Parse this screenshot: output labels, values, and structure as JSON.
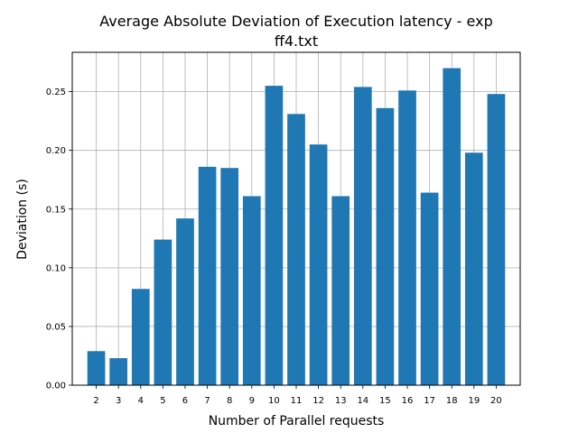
{
  "chart_data": {
    "type": "bar",
    "title_line1": "Average Absolute Deviation of Execution latency - exp",
    "title_line2": "ff4.txt",
    "xlabel": "Number of Parallel requests",
    "ylabel": "Deviation (s)",
    "categories": [
      "2",
      "3",
      "4",
      "5",
      "6",
      "7",
      "8",
      "9",
      "10",
      "11",
      "12",
      "13",
      "14",
      "15",
      "16",
      "17",
      "18",
      "19",
      "20"
    ],
    "values": [
      0.029,
      0.023,
      0.082,
      0.124,
      0.142,
      0.186,
      0.185,
      0.161,
      0.255,
      0.231,
      0.205,
      0.161,
      0.254,
      0.236,
      0.251,
      0.164,
      0.27,
      0.198,
      0.248
    ],
    "yticks": [
      "0.00",
      "0.05",
      "0.10",
      "0.15",
      "0.20",
      "0.25"
    ],
    "ylim": [
      0,
      0.2835
    ],
    "grid": true,
    "bar_color": "#1f77b4",
    "grid_color": "#b0b0b0"
  }
}
